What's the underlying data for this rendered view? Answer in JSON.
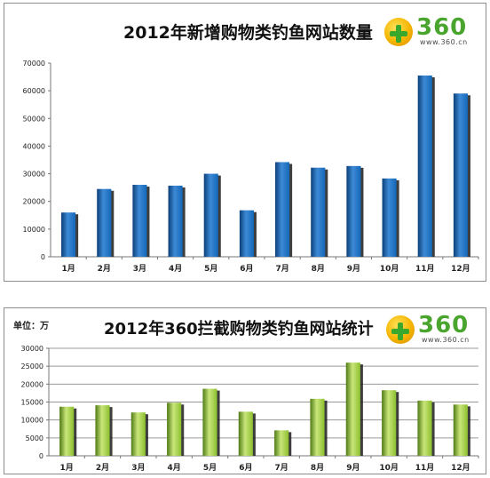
{
  "chart_data": [
    {
      "type": "bar",
      "title": "2012年新增购物类钓鱼网站数量",
      "categories": [
        "1月",
        "2月",
        "3月",
        "4月",
        "5月",
        "6月",
        "7月",
        "8月",
        "9月",
        "10月",
        "11月",
        "12月"
      ],
      "values": [
        16000,
        24500,
        26000,
        25700,
        30000,
        16800,
        34200,
        32200,
        32800,
        28300,
        65500,
        59000
      ],
      "yticks": [
        0,
        10000,
        20000,
        30000,
        40000,
        50000,
        60000,
        70000
      ],
      "ylim": [
        0,
        70000
      ],
      "xlabel": "",
      "ylabel": "",
      "grid": false,
      "colors": {
        "bar": "#1467b8",
        "bar_dark": "#0b3f78",
        "bar_light": "#3d8ad6"
      },
      "logo": {
        "text": "360",
        "url": "www.360.cn"
      }
    },
    {
      "type": "bar",
      "title": "2012年360拦截购物类钓鱼网站统计",
      "unit_label": "单位：万",
      "categories": [
        "1月",
        "2月",
        "3月",
        "4月",
        "5月",
        "6月",
        "7月",
        "8月",
        "9月",
        "10月",
        "11月",
        "12月"
      ],
      "values": [
        13700,
        14100,
        12100,
        14800,
        18700,
        12300,
        7100,
        15900,
        26000,
        18300,
        15400,
        14300
      ],
      "yticks": [
        0,
        5000,
        10000,
        15000,
        20000,
        25000,
        30000
      ],
      "ylim": [
        0,
        30000
      ],
      "xlabel": "",
      "ylabel": "",
      "grid": true,
      "colors": {
        "bar": "#8cbf2e",
        "bar_dark": "#4f7a14",
        "bar_light": "#c9e67a"
      },
      "logo": {
        "text": "360",
        "url": "www.360.cn"
      }
    }
  ]
}
